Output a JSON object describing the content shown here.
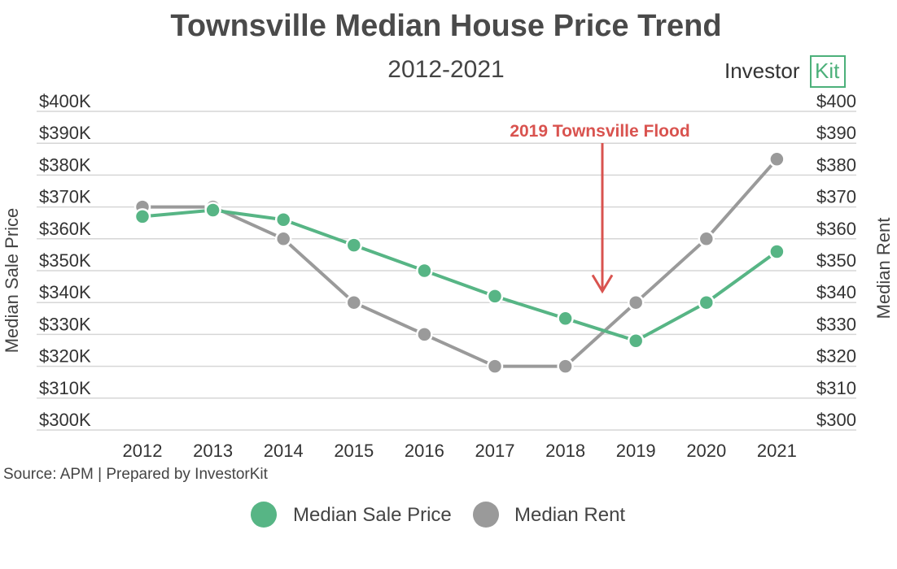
{
  "chart_data": {
    "type": "line",
    "title": "Townsville Median House Price Trend",
    "subtitle": "2012-2021",
    "categories": [
      "2012",
      "2013",
      "2014",
      "2015",
      "2016",
      "2017",
      "2018",
      "2019",
      "2020",
      "2021"
    ],
    "y_left": {
      "label": "Median Sale Price",
      "range": [
        300000,
        400000
      ],
      "step": 10000,
      "tick_labels": [
        "$300K",
        "$310K",
        "$320K",
        "$330K",
        "$340K",
        "$350K",
        "$360K",
        "$370K",
        "$380K",
        "$390K",
        "$400K"
      ]
    },
    "y_right": {
      "label": "Median Rent",
      "range": [
        300,
        400
      ],
      "step": 10,
      "tick_labels": [
        "$300",
        "$310",
        "$320",
        "$330",
        "$340",
        "$350",
        "$360",
        "$370",
        "$380",
        "$390",
        "$400"
      ]
    },
    "series": [
      {
        "name": "Median Sale Price",
        "axis": "left",
        "color": "#57b585",
        "values": [
          367000,
          369000,
          366000,
          358000,
          350000,
          342000,
          335000,
          328000,
          340000,
          356000
        ]
      },
      {
        "name": "Median Rent",
        "axis": "right",
        "color": "#9a9a9a",
        "values": [
          370,
          370,
          360,
          340,
          330,
          320,
          320,
          340,
          360,
          385
        ]
      }
    ],
    "annotation": {
      "text": "2019 Townsville Flood",
      "color": "#d9534f",
      "x_between": [
        "2018",
        "2019"
      ],
      "points_to_rent": 342
    },
    "grid": true,
    "legend_position": "bottom"
  },
  "source": "Source: APM | Prepared by InvestorKit",
  "logo": {
    "text_main": "Investor",
    "text_accent": "Kit",
    "accent_color": "#4cb07a"
  }
}
